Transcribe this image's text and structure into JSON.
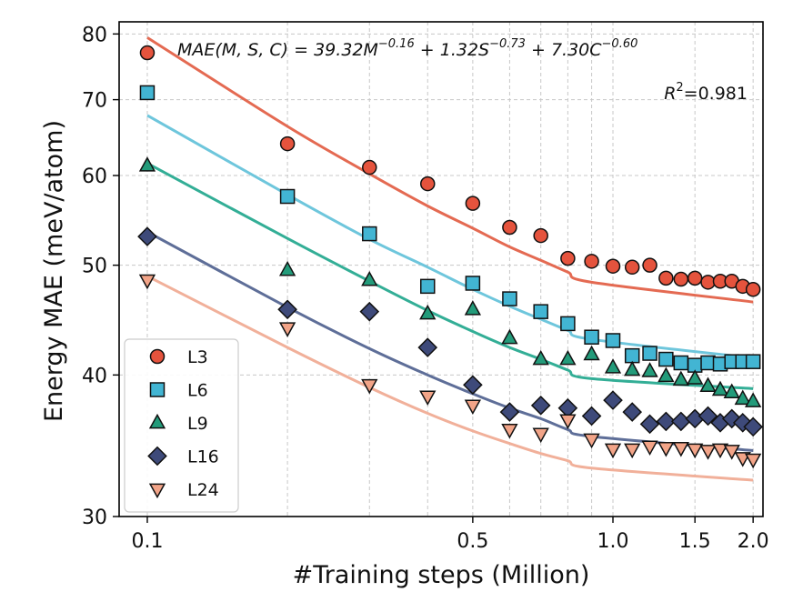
{
  "chart_data": {
    "type": "scatter",
    "title": "",
    "xlabel": "#Training steps (Million)",
    "ylabel": "Energy MAE (meV/atom)",
    "xscale": "log",
    "yscale": "log",
    "xlim": [
      0.087,
      2.1
    ],
    "ylim": [
      30,
      82
    ],
    "x_ticks": [
      0.1,
      0.5,
      1.0,
      1.5,
      2.0
    ],
    "x_tick_labels": [
      "0.1",
      "0.5",
      "1.0",
      "1.5",
      "2.0"
    ],
    "y_ticks": [
      30,
      40,
      50,
      60,
      70,
      80
    ],
    "y_tick_labels": [
      "30",
      "40",
      "50",
      "60",
      "70",
      "80"
    ],
    "grid": true,
    "legend_position": "bottom-left",
    "annotations": {
      "formula": "MAE(M, S, C) = 39.32M^{−0.16} + 1.32S^{−0.73} + 7.30C^{−0.60}",
      "formula_base": "MAE(M, S, C) = 39.32M",
      "exp1": "−0.16",
      "mid1": " + 1.32S",
      "exp2": "−0.73",
      "mid2": " + 7.30C",
      "exp3": "−0.60",
      "r2_label": "R",
      "r2_exp": "2",
      "r2_value": "=0.981"
    },
    "x": [
      0.1,
      0.2,
      0.3,
      0.4,
      0.5,
      0.6,
      0.7,
      0.8,
      0.9,
      1.0,
      1.1,
      1.2,
      1.3,
      1.4,
      1.5,
      1.6,
      1.7,
      1.8,
      1.9,
      2.0
    ],
    "series": [
      {
        "name": "L3",
        "marker": "circle",
        "color": "#e5533d",
        "line_color": "#e46a52",
        "values": [
          77.0,
          64.0,
          61.0,
          59.0,
          56.7,
          54.0,
          53.1,
          50.7,
          50.4,
          49.9,
          49.8,
          50.0,
          48.7,
          48.6,
          48.7,
          48.3,
          48.4,
          48.4,
          47.9,
          47.6
        ],
        "fit": [
          79.4,
          66.3,
          60.2,
          56.4,
          53.9,
          51.9,
          50.5,
          49.3,
          48.3,
          46.4
        ]
      },
      {
        "name": "L6",
        "marker": "square",
        "color": "#42b5d3",
        "line_color": "#6ec6dc",
        "values": [
          71.0,
          57.5,
          53.3,
          47.9,
          48.2,
          46.7,
          45.5,
          44.4,
          43.2,
          42.9,
          41.6,
          41.8,
          41.3,
          41.0,
          40.8,
          41.0,
          40.9,
          41.1,
          41.1,
          41.1
        ],
        "fit": [
          67.8,
          57.7,
          52.7,
          49.8,
          47.6,
          46.0,
          44.8,
          43.8,
          43.0,
          41.4
        ]
      },
      {
        "name": "L9",
        "marker": "triangle-up",
        "color": "#239b7a",
        "line_color": "#33ae96",
        "values": [
          61.2,
          49.5,
          48.5,
          45.3,
          45.7,
          43.1,
          41.3,
          41.3,
          41.7,
          40.6,
          40.4,
          40.3,
          39.9,
          39.6,
          39.7,
          39.1,
          38.8,
          38.6,
          38.1,
          37.9
        ],
        "fit": [
          61.5,
          52.8,
          48.4,
          45.6,
          43.7,
          42.3,
          41.3,
          40.4,
          39.7,
          38.9
        ]
      },
      {
        "name": "L16",
        "marker": "diamond",
        "color": "#3e4a7a",
        "line_color": "#5e6e98",
        "values": [
          53.0,
          45.7,
          45.5,
          42.3,
          39.2,
          37.1,
          37.6,
          37.4,
          36.8,
          38.0,
          37.1,
          36.2,
          36.4,
          36.4,
          36.6,
          36.8,
          36.3,
          36.6,
          36.3,
          36.0
        ],
        "fit": [
          53.5,
          45.9,
          42.2,
          40.0,
          38.5,
          37.4,
          36.6,
          35.8,
          35.3,
          34.3
        ]
      },
      {
        "name": "L24",
        "marker": "triangle-down",
        "color": "#f2a488",
        "line_color": "#f1b09a",
        "values": [
          48.5,
          44.0,
          39.2,
          38.3,
          37.6,
          35.8,
          35.5,
          36.5,
          35.1,
          34.4,
          34.4,
          34.6,
          34.5,
          34.5,
          34.4,
          34.3,
          34.4,
          34.3,
          33.8,
          33.7
        ],
        "fit": [
          48.9,
          42.3,
          39.0,
          37.0,
          35.7,
          34.8,
          34.1,
          33.6,
          33.1,
          32.3
        ]
      }
    ],
    "fit_x": [
      0.1,
      0.2,
      0.3,
      0.4,
      0.5,
      0.6,
      0.7,
      0.8,
      0.9,
      2.0
    ]
  }
}
